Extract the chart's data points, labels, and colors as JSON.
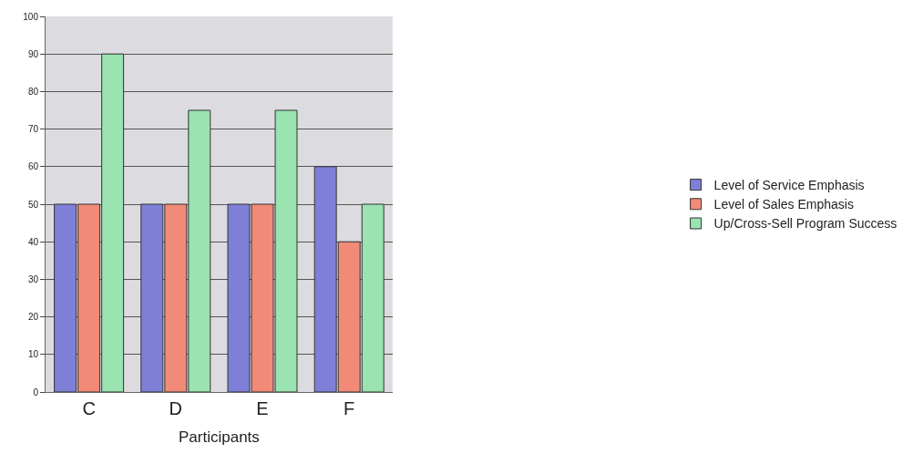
{
  "chart_data": {
    "type": "bar",
    "xlabel": "Participants",
    "categories": [
      "C",
      "D",
      "E",
      "F"
    ],
    "series": [
      {
        "name": "Level of Service Emphasis",
        "color": "#7f7fd8",
        "values": [
          50,
          50,
          50,
          60
        ]
      },
      {
        "name": "Level of Sales Emphasis",
        "color": "#f28a78",
        "values": [
          50,
          50,
          50,
          40
        ]
      },
      {
        "name": "Up/Cross-Sell Program Success",
        "color": "#9be3b0",
        "values": [
          90,
          75,
          75,
          50
        ]
      }
    ],
    "ylim": [
      0,
      100
    ],
    "yticks": [
      0,
      10,
      20,
      30,
      40,
      50,
      60,
      70,
      80,
      90,
      100
    ],
    "grid": "y",
    "legend": "right"
  }
}
